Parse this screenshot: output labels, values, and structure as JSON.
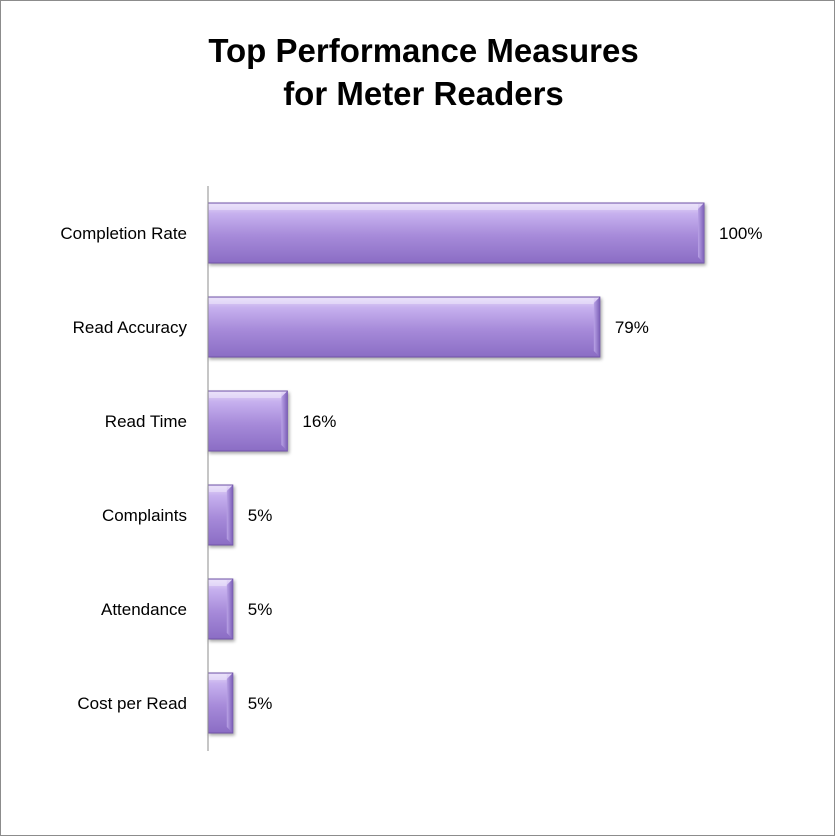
{
  "chart_data": {
    "type": "bar",
    "orientation": "horizontal",
    "title": "Top Performance Measures for Meter Readers",
    "title_lines": [
      "Top Performance Measures",
      "for Meter Readers"
    ],
    "categories": [
      "Completion Rate",
      "Read Accuracy",
      "Read Time",
      "Complaints",
      "Attendance",
      "Cost per Read"
    ],
    "values": [
      100,
      79,
      16,
      5,
      5,
      5
    ],
    "value_labels": [
      "100%",
      "79%",
      "16%",
      "5%",
      "5%",
      "5%"
    ],
    "xlim": [
      0,
      100
    ],
    "grid": false,
    "legend": "none",
    "xlabel": "",
    "ylabel": "",
    "bar_color": "#a58bd8"
  }
}
